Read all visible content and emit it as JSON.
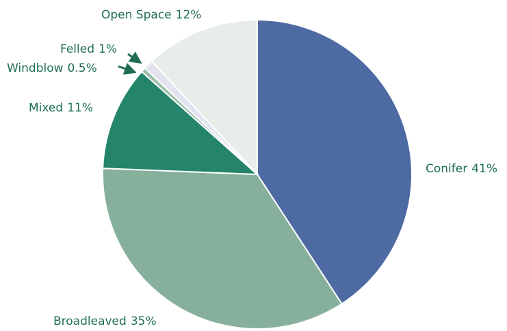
{
  "chart_data": {
    "type": "pie",
    "categories": [
      "Conifer",
      "Broadleaved",
      "Mixed",
      "Windblow",
      "Felled",
      "Open Space"
    ],
    "values": [
      41,
      35,
      11,
      0.5,
      1,
      12
    ],
    "value_labels": [
      "41%",
      "35%",
      "11%",
      "0.5%",
      "1%",
      "12%"
    ],
    "colors": [
      "#4d6aa3",
      "#86b09c",
      "#24856a",
      "#9cc0aa",
      "#e3e3f0",
      "#e7eee9"
    ]
  }
}
